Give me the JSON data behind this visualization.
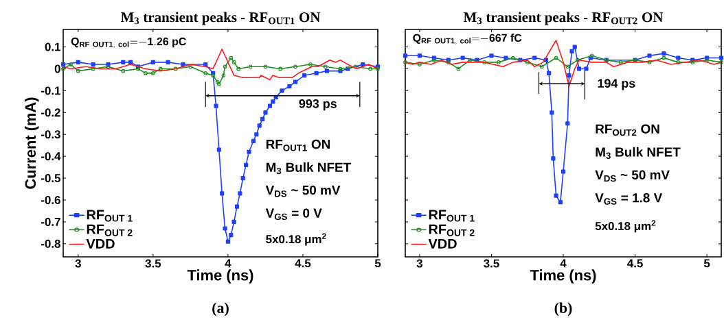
{
  "chart_data": [
    {
      "type": "line",
      "title": "M$_{3}$ transient peaks - RF$_{OUT1}$ ON",
      "xlabel": "Time (ns)",
      "ylabel": "Current (mA)",
      "xlim": [
        2.9,
        5.0
      ],
      "ylim": [
        -0.86,
        0.18
      ],
      "xticks": [
        3,
        3.5,
        4,
        4.5,
        5
      ],
      "yticks": [
        -0.8,
        -0.7,
        -0.6,
        -0.5,
        -0.4,
        -0.3,
        -0.2,
        -0.1,
        0,
        0.1
      ],
      "legend": "bottom left",
      "grid": false,
      "annotations": [
        "\\mathbf{Q_{RF\\ OUT1,\\ col}{=}{-}1.26\\ pC}",
        "993 ps",
        "RF$_{OUT1}$ ON",
        "M$_{3}$ Bulk NFET",
        "V$_{DS}$ ~ 50 mV",
        "V$_{GS}$ = 0 V",
        "5x0.18 μm$^{2}$",
        "(a)"
      ],
      "series": [
        {
          "name": "RF$_{OUT 1}$",
          "color": "#1f3fff",
          "marker": "square",
          "x": [
            2.9,
            3.0,
            3.1,
            3.2,
            3.3,
            3.35,
            3.4,
            3.5,
            3.6,
            3.7,
            3.85,
            3.9,
            3.92,
            3.94,
            3.96,
            3.98,
            4.0,
            4.02,
            4.04,
            4.06,
            4.08,
            4.1,
            4.12,
            4.14,
            4.17,
            4.19,
            4.21,
            4.23,
            4.25,
            4.28,
            4.3,
            4.32,
            4.36,
            4.41,
            4.45,
            4.51,
            4.59,
            4.66,
            4.75,
            4.8,
            4.9,
            5.0
          ],
          "values": [
            0.02,
            0.03,
            0.02,
            0.02,
            0.03,
            0.03,
            0.01,
            0.03,
            0.03,
            0.02,
            0.02,
            -0.02,
            -0.17,
            -0.37,
            -0.57,
            -0.73,
            -0.79,
            -0.76,
            -0.7,
            -0.63,
            -0.57,
            -0.5,
            -0.44,
            -0.38,
            -0.33,
            -0.3,
            -0.26,
            -0.23,
            -0.2,
            -0.17,
            -0.15,
            -0.13,
            -0.1,
            -0.08,
            -0.06,
            -0.03,
            -0.02,
            -0.01,
            -0.01,
            0.0,
            0.02,
            0.01
          ]
        },
        {
          "name": "RF$_{OUT 2}$",
          "color": "#228b22",
          "marker": "circle",
          "x": [
            2.9,
            2.95,
            3.0,
            3.1,
            3.2,
            3.3,
            3.4,
            3.45,
            3.5,
            3.55,
            3.65,
            3.75,
            3.85,
            3.9,
            3.93,
            3.94,
            3.97,
            3.98,
            4.02,
            4.04,
            4.07,
            4.15,
            4.25,
            4.35,
            4.45,
            4.55,
            4.65,
            4.75,
            4.85,
            4.95,
            5.0
          ],
          "values": [
            0.0,
            0.02,
            -0.01,
            0.0,
            0.01,
            -0.01,
            0.0,
            -0.02,
            -0.02,
            0.0,
            0.0,
            0.01,
            -0.02,
            -0.03,
            -0.06,
            -0.07,
            -0.03,
            0.01,
            0.05,
            0.03,
            0.0,
            0.01,
            0.01,
            0.0,
            0.01,
            0.02,
            0.01,
            0.0,
            0.01,
            0.0,
            0.0
          ]
        },
        {
          "name": "VDD",
          "color": "#ff1a1a",
          "marker": "none",
          "x": [
            2.9,
            2.95,
            3.05,
            3.15,
            3.25,
            3.35,
            3.45,
            3.55,
            3.65,
            3.75,
            3.85,
            3.9,
            3.96,
            4.0,
            4.04,
            4.1,
            4.21,
            4.22,
            4.28,
            4.3,
            4.34,
            4.43,
            4.47,
            4.56,
            4.6,
            4.68,
            4.72,
            4.75,
            4.8,
            4.86,
            4.94,
            5.0
          ],
          "values": [
            0.01,
            0.0,
            0.01,
            0.0,
            0.0,
            0.02,
            0.0,
            -0.01,
            0.0,
            0.02,
            0.01,
            0.0,
            0.09,
            0.03,
            -0.03,
            -0.04,
            -0.04,
            -0.03,
            -0.05,
            -0.03,
            -0.04,
            -0.04,
            -0.02,
            0.01,
            0.01,
            0.04,
            0.03,
            0.04,
            0.02,
            0.0,
            0.02,
            0.0
          ]
        }
      ]
    },
    {
      "type": "line",
      "title": "M$_{3}$ transient peaks - RF$_{OUT2}$ ON",
      "xlabel": "Time (ns)",
      "xlim": [
        2.9,
        5.1
      ],
      "ylim": [
        -0.86,
        0.18
      ],
      "xticks": [
        3,
        3.5,
        4,
        4.5,
        5
      ],
      "yticks": [
        {
          "value": -0.8,
          "label": null
        },
        {
          "value": -0.7,
          "label": null
        },
        {
          "value": -0.6,
          "label": null
        },
        {
          "value": -0.5,
          "label": null
        },
        {
          "value": -0.4,
          "label": null
        },
        {
          "value": -0.3,
          "label": null
        },
        {
          "value": -0.2,
          "label": null
        },
        {
          "value": -0.1,
          "label": null
        },
        {
          "value": 0,
          "label": null
        },
        {
          "value": 0.1,
          "label": null
        }
      ],
      "tick_labels": "x",
      "legend": "bottom left",
      "grid": false,
      "annotations": [
        "\\mathbf{Q_{RF\\ OUT1,\\ col}{=}{-}667\\ fC}",
        "194 ps",
        "RF$_{OUT2}$ ON",
        "M$_{3}$ Bulk NFET",
        "V$_{DS}$ ~ 50 mV",
        "V$_{GS}$ = 1.8 V",
        "5x0.18 μm$^{2}$",
        "(b)"
      ],
      "series": [
        {
          "name": "RF$_{OUT 1}$",
          "color": "#1f3fff",
          "marker": "square",
          "x": [
            2.9,
            3.0,
            3.1,
            3.2,
            3.3,
            3.4,
            3.5,
            3.6,
            3.7,
            3.8,
            3.88,
            3.9,
            3.92,
            3.93,
            3.95,
            3.98,
            4.0,
            4.03,
            4.04,
            4.06,
            4.08,
            4.11,
            4.16,
            4.19,
            4.3,
            4.5,
            4.6,
            4.7,
            4.8,
            4.9,
            5.0,
            5.1
          ],
          "values": [
            0.06,
            0.06,
            0.05,
            0.04,
            0.05,
            0.04,
            0.06,
            0.05,
            0.04,
            0.05,
            0.04,
            -0.02,
            -0.2,
            -0.41,
            -0.58,
            -0.61,
            -0.47,
            -0.25,
            -0.03,
            0.08,
            0.1,
            0.0,
            0.0,
            0.05,
            0.04,
            0.04,
            0.06,
            0.07,
            0.05,
            0.04,
            0.05,
            0.05
          ]
        },
        {
          "name": "RF$_{OUT 2}$",
          "color": "#228b22",
          "marker": "circle",
          "x": [
            2.9,
            3.0,
            3.1,
            3.2,
            3.27,
            3.35,
            3.45,
            3.55,
            3.65,
            3.75,
            3.85,
            3.95,
            4.03,
            4.1,
            4.2,
            4.3,
            4.4,
            4.5,
            4.6,
            4.7,
            4.8,
            4.9,
            5.0,
            5.1
          ],
          "values": [
            0.03,
            0.02,
            0.04,
            0.03,
            0.0,
            0.04,
            0.03,
            0.03,
            0.05,
            0.03,
            0.01,
            0.05,
            0.01,
            0.04,
            0.06,
            0.04,
            0.03,
            0.04,
            0.03,
            0.05,
            0.03,
            0.03,
            0.04,
            0.03
          ]
        },
        {
          "name": "VDD",
          "color": "#ff1a1a",
          "marker": "none",
          "x": [
            2.9,
            2.95,
            3.0,
            3.08,
            3.15,
            3.22,
            3.3,
            3.45,
            3.58,
            3.65,
            3.75,
            3.8,
            3.86,
            3.95,
            4.0,
            4.04,
            4.08,
            4.11,
            4.2,
            4.3,
            4.35,
            4.45,
            4.55,
            4.65,
            4.75,
            4.85,
            4.95,
            5.05,
            5.1
          ],
          "values": [
            0.03,
            0.02,
            0.03,
            0.02,
            0.04,
            0.02,
            0.03,
            0.03,
            0.01,
            0.03,
            0.04,
            0.01,
            0.03,
            0.13,
            0.03,
            -0.08,
            0.0,
            0.04,
            0.03,
            0.03,
            0.01,
            0.03,
            0.03,
            0.04,
            0.02,
            0.03,
            0.04,
            0.02,
            0.03
          ]
        }
      ]
    }
  ]
}
